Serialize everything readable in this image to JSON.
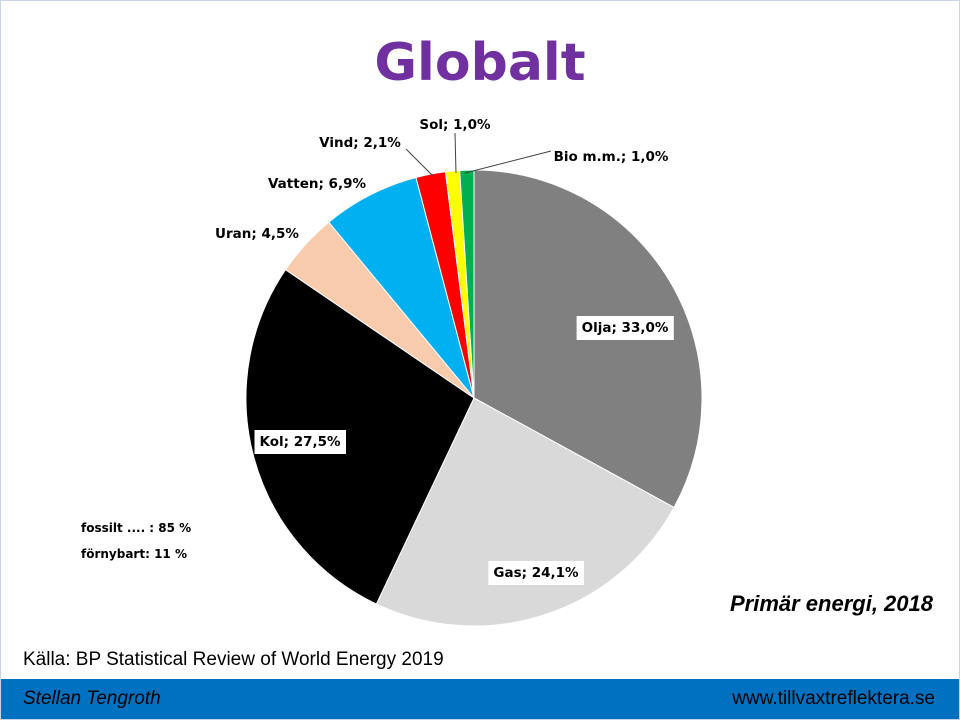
{
  "slide": {
    "title": "Globalt",
    "subtitle": "Primär energi, 2018",
    "source": "Källa: BP Statistical Review  of World Energy 2019",
    "notes": {
      "fossil": "fossilt .... : 85 %",
      "renewable": "förnybart:  11 %"
    }
  },
  "footer": {
    "author": "Stellan Tengroth",
    "website": "www.tillvaxtreflektera.se",
    "background": "#0070c0"
  },
  "chart_data": {
    "type": "pie",
    "title": "Globalt",
    "start": "12 o'clock",
    "direction": "clockwise",
    "slices": [
      {
        "name": "Olja",
        "value": 33.0,
        "label": "Olja; 33,0%",
        "color": "#808080"
      },
      {
        "name": "Gas",
        "value": 24.1,
        "label": "Gas; 24,1%",
        "color": "#d9d9d9"
      },
      {
        "name": "Kol",
        "value": 27.5,
        "label": "Kol; 27,5%",
        "color": "#000000"
      },
      {
        "name": "Uran",
        "value": 4.5,
        "label": "Uran; 4,5%",
        "color": "#f8cbad"
      },
      {
        "name": "Vatten",
        "value": 6.9,
        "label": "Vatten; 6,9%",
        "color": "#00b0f0"
      },
      {
        "name": "Vind",
        "value": 2.1,
        "label": "Vind; 2,1%",
        "color": "#ff0000"
      },
      {
        "name": "Sol",
        "value": 1.0,
        "label": "Sol; 1,0%",
        "color": "#ffff00"
      },
      {
        "name": "Bio m.m.",
        "value": 1.0,
        "label": "Bio m.m.; 1,0%",
        "color": "#00b050"
      }
    ]
  }
}
